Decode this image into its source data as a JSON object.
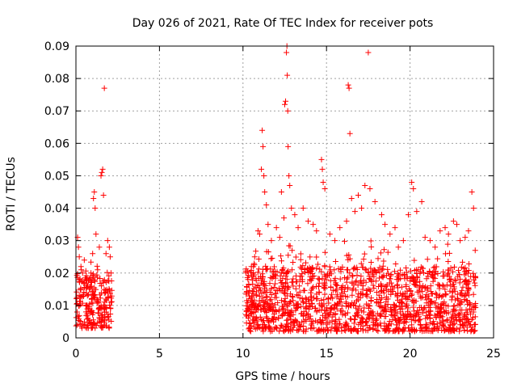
{
  "chart_data": {
    "type": "scatter",
    "title": "Day 026 of 2021, Rate Of TEC Index for receiver pots",
    "xlabel": "GPS time / hours",
    "ylabel": "ROTI / TECUs",
    "xlim": [
      0,
      25
    ],
    "ylim": [
      0,
      0.09
    ],
    "x_ticks": [
      "0",
      "5",
      "10",
      "15",
      "20",
      "25"
    ],
    "x_tick_values": [
      0,
      5,
      10,
      15,
      20,
      25
    ],
    "y_ticks": [
      "0",
      "0.01",
      "0.02",
      "0.03",
      "0.04",
      "0.05",
      "0.06",
      "0.07",
      "0.08",
      "0.09"
    ],
    "y_tick_values": [
      0,
      0.01,
      0.02,
      0.03,
      0.04,
      0.05,
      0.06,
      0.07,
      0.08,
      0.09
    ],
    "grid": true,
    "marker": "+",
    "series": [
      {
        "name": "ROTI",
        "color": "#ff0000",
        "points": [
          [
            0.1,
            0.031
          ],
          [
            0.15,
            0.028
          ],
          [
            0.2,
            0.025
          ],
          [
            0.3,
            0.022
          ],
          [
            0.4,
            0.02
          ],
          [
            0.5,
            0.024
          ],
          [
            0.6,
            0.018
          ],
          [
            0.7,
            0.016
          ],
          [
            0.8,
            0.015
          ],
          [
            0.9,
            0.02
          ],
          [
            1.0,
            0.026
          ],
          [
            1.05,
            0.043
          ],
          [
            1.1,
            0.045
          ],
          [
            1.15,
            0.04
          ],
          [
            1.2,
            0.032
          ],
          [
            1.3,
            0.021
          ],
          [
            1.4,
            0.028
          ],
          [
            1.5,
            0.05
          ],
          [
            1.55,
            0.051
          ],
          [
            1.6,
            0.052
          ],
          [
            1.65,
            0.044
          ],
          [
            1.7,
            0.077
          ],
          [
            1.8,
            0.026
          ],
          [
            1.9,
            0.03
          ],
          [
            2.0,
            0.028
          ],
          [
            2.05,
            0.025
          ],
          [
            2.1,
            0.02
          ],
          [
            10.3,
            0.018
          ],
          [
            10.5,
            0.022
          ],
          [
            10.7,
            0.025
          ],
          [
            10.9,
            0.033
          ],
          [
            11.0,
            0.032
          ],
          [
            11.1,
            0.052
          ],
          [
            11.15,
            0.064
          ],
          [
            11.2,
            0.059
          ],
          [
            11.25,
            0.05
          ],
          [
            11.3,
            0.045
          ],
          [
            11.4,
            0.041
          ],
          [
            11.5,
            0.035
          ],
          [
            11.7,
            0.03
          ],
          [
            12.0,
            0.034
          ],
          [
            12.2,
            0.031
          ],
          [
            12.3,
            0.045
          ],
          [
            12.45,
            0.037
          ],
          [
            12.5,
            0.072
          ],
          [
            12.55,
            0.073
          ],
          [
            12.6,
            0.088
          ],
          [
            12.63,
            0.09
          ],
          [
            12.65,
            0.081
          ],
          [
            12.68,
            0.07
          ],
          [
            12.7,
            0.059
          ],
          [
            12.75,
            0.05
          ],
          [
            12.8,
            0.047
          ],
          [
            12.9,
            0.04
          ],
          [
            13.1,
            0.038
          ],
          [
            13.3,
            0.034
          ],
          [
            13.6,
            0.04
          ],
          [
            13.9,
            0.036
          ],
          [
            14.2,
            0.035
          ],
          [
            14.4,
            0.033
          ],
          [
            14.7,
            0.055
          ],
          [
            14.75,
            0.052
          ],
          [
            14.8,
            0.048
          ],
          [
            14.9,
            0.046
          ],
          [
            15.2,
            0.032
          ],
          [
            15.5,
            0.03
          ],
          [
            15.8,
            0.034
          ],
          [
            16.2,
            0.036
          ],
          [
            16.3,
            0.078
          ],
          [
            16.35,
            0.077
          ],
          [
            16.4,
            0.063
          ],
          [
            16.5,
            0.043
          ],
          [
            16.7,
            0.039
          ],
          [
            16.9,
            0.044
          ],
          [
            17.1,
            0.04
          ],
          [
            17.3,
            0.047
          ],
          [
            17.5,
            0.088
          ],
          [
            17.6,
            0.046
          ],
          [
            17.9,
            0.042
          ],
          [
            18.3,
            0.038
          ],
          [
            18.5,
            0.035
          ],
          [
            18.8,
            0.032
          ],
          [
            19.1,
            0.034
          ],
          [
            19.3,
            0.028
          ],
          [
            19.6,
            0.03
          ],
          [
            19.9,
            0.038
          ],
          [
            20.1,
            0.048
          ],
          [
            20.2,
            0.046
          ],
          [
            20.4,
            0.039
          ],
          [
            20.7,
            0.042
          ],
          [
            20.9,
            0.031
          ],
          [
            21.2,
            0.03
          ],
          [
            21.5,
            0.028
          ],
          [
            21.8,
            0.033
          ],
          [
            22.1,
            0.034
          ],
          [
            22.3,
            0.032
          ],
          [
            22.6,
            0.036
          ],
          [
            22.8,
            0.035
          ],
          [
            23.0,
            0.03
          ],
          [
            23.3,
            0.031
          ],
          [
            23.5,
            0.033
          ],
          [
            23.7,
            0.045
          ],
          [
            23.8,
            0.04
          ],
          [
            23.9,
            0.027
          ]
        ],
        "dense_bands": [
          {
            "x": [
              0.0,
              2.15
            ],
            "y": [
              0.003,
              0.02
            ]
          },
          {
            "x": [
              10.15,
              23.95
            ],
            "y": [
              0.002,
              0.022
            ]
          }
        ]
      }
    ]
  }
}
